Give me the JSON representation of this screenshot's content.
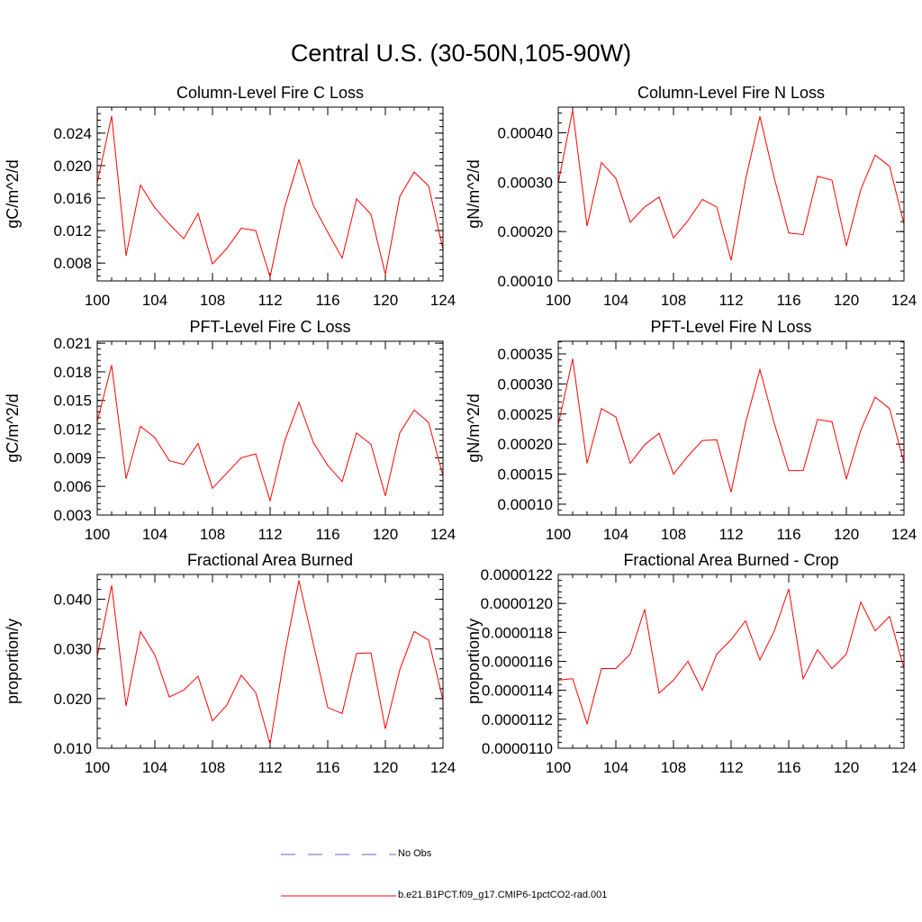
{
  "title": "Central U.S. (30-50N,105-90W)",
  "legend": {
    "items": [
      {
        "label": "No Obs",
        "color": "#5f5fd6",
        "style": "dashed"
      },
      {
        "label": "b.e21.B1PCT.f09_g17.CMIP6-1pctCO2-rad.001",
        "color": "#ff0000",
        "style": "solid"
      }
    ]
  },
  "chart_data": [
    {
      "type": "line",
      "title": "Column-Level Fire C Loss",
      "ylabel": "gC/m^2/d",
      "xlabel": "",
      "xlim": [
        100,
        124
      ],
      "ylim": [
        0.0058,
        0.0272
      ],
      "xticks": [
        "100",
        "104",
        "108",
        "112",
        "116",
        "120",
        "124"
      ],
      "yticks": [
        {
          "v": 0.008,
          "t": "0.008"
        },
        {
          "v": 0.012,
          "t": "0.012"
        },
        {
          "v": 0.016,
          "t": "0.016"
        },
        {
          "v": 0.02,
          "t": "0.020"
        },
        {
          "v": 0.024,
          "t": "0.024"
        }
      ],
      "series": [
        {
          "color": "#ff0000",
          "x": [
            100,
            101,
            102,
            103,
            104,
            105,
            106,
            107,
            108,
            109,
            110,
            111,
            112,
            113,
            114,
            115,
            116,
            117,
            118,
            119,
            120,
            121,
            122,
            123,
            124
          ],
          "values": [
            0.0179,
            0.0261,
            0.0089,
            0.0176,
            0.0148,
            0.0128,
            0.011,
            0.0141,
            0.0079,
            0.0098,
            0.0123,
            0.012,
            0.0063,
            0.0148,
            0.0207,
            0.0151,
            0.0118,
            0.0086,
            0.0159,
            0.014,
            0.0066,
            0.0162,
            0.0192,
            0.0175,
            0.0097
          ]
        }
      ]
    },
    {
      "type": "line",
      "title": "Column-Level Fire N Loss",
      "ylabel": "gN/m^2/d",
      "xlabel": "",
      "xlim": [
        100,
        124
      ],
      "ylim": [
        0.0001,
        0.000452
      ],
      "xticks": [
        "100",
        "104",
        "108",
        "112",
        "116",
        "120",
        "124"
      ],
      "yticks": [
        {
          "v": 0.0001,
          "t": "0.00010"
        },
        {
          "v": 0.0002,
          "t": "0.00020"
        },
        {
          "v": 0.0003,
          "t": "0.00030"
        },
        {
          "v": 0.0004,
          "t": "0.00040"
        }
      ],
      "series": [
        {
          "color": "#ff0000",
          "x": [
            100,
            101,
            102,
            103,
            104,
            105,
            106,
            107,
            108,
            109,
            110,
            111,
            112,
            113,
            114,
            115,
            116,
            117,
            118,
            119,
            120,
            121,
            122,
            123,
            124
          ],
          "values": [
            0.000298,
            0.000446,
            0.000211,
            0.00034,
            0.000308,
            0.000219,
            0.00025,
            0.00027,
            0.000187,
            0.000222,
            0.000265,
            0.00025,
            0.000142,
            0.000305,
            0.000433,
            0.000308,
            0.000197,
            0.000194,
            0.000312,
            0.000304,
            0.000171,
            0.000285,
            0.000355,
            0.000332,
            0.000215
          ]
        }
      ]
    },
    {
      "type": "line",
      "title": "PFT-Level Fire C Loss",
      "ylabel": "gC/m^2/d",
      "xlabel": "",
      "xlim": [
        100,
        124
      ],
      "ylim": [
        0.003,
        0.0212
      ],
      "xticks": [
        "100",
        "104",
        "108",
        "112",
        "116",
        "120",
        "124"
      ],
      "yticks": [
        {
          "v": 0.003,
          "t": "0.003"
        },
        {
          "v": 0.006,
          "t": "0.006"
        },
        {
          "v": 0.009,
          "t": "0.009"
        },
        {
          "v": 0.012,
          "t": "0.012"
        },
        {
          "v": 0.015,
          "t": "0.015"
        },
        {
          "v": 0.018,
          "t": "0.018"
        },
        {
          "v": 0.021,
          "t": "0.021"
        }
      ],
      "series": [
        {
          "color": "#ff0000",
          "x": [
            100,
            101,
            102,
            103,
            104,
            105,
            106,
            107,
            108,
            109,
            110,
            111,
            112,
            113,
            114,
            115,
            116,
            117,
            118,
            119,
            120,
            121,
            122,
            123,
            124
          ],
          "values": [
            0.0128,
            0.0187,
            0.0068,
            0.0123,
            0.0111,
            0.0087,
            0.0083,
            0.0105,
            0.0058,
            0.0074,
            0.009,
            0.0094,
            0.0045,
            0.0107,
            0.0148,
            0.0106,
            0.0082,
            0.0065,
            0.0116,
            0.0104,
            0.005,
            0.0116,
            0.014,
            0.0127,
            0.0071
          ]
        }
      ]
    },
    {
      "type": "line",
      "title": "PFT-Level Fire N Loss",
      "ylabel": "gN/m^2/d",
      "xlabel": "",
      "xlim": [
        100,
        124
      ],
      "ylim": [
        8.2e-05,
        0.000371
      ],
      "xticks": [
        "100",
        "104",
        "108",
        "112",
        "116",
        "120",
        "124"
      ],
      "yticks": [
        {
          "v": 0.0001,
          "t": "0.00010"
        },
        {
          "v": 0.00015,
          "t": "0.00015"
        },
        {
          "v": 0.0002,
          "t": "0.00020"
        },
        {
          "v": 0.00025,
          "t": "0.00025"
        },
        {
          "v": 0.0003,
          "t": "0.00030"
        },
        {
          "v": 0.00035,
          "t": "0.00035"
        }
      ],
      "series": [
        {
          "color": "#ff0000",
          "x": [
            100,
            101,
            102,
            103,
            104,
            105,
            106,
            107,
            108,
            109,
            110,
            111,
            112,
            113,
            114,
            115,
            116,
            117,
            118,
            119,
            120,
            121,
            122,
            123,
            124
          ],
          "values": [
            0.000232,
            0.000342,
            0.000168,
            0.000259,
            0.000245,
            0.000168,
            0.000199,
            0.000218,
            0.00015,
            0.00018,
            0.000206,
            0.000207,
            0.00012,
            0.000235,
            0.000324,
            0.000234,
            0.000156,
            0.000156,
            0.000241,
            0.000237,
            0.000142,
            0.000223,
            0.000278,
            0.000259,
            0.000169
          ]
        }
      ]
    },
    {
      "type": "line",
      "title": "Fractional Area Burned",
      "ylabel": "proportion/y",
      "xlabel": "",
      "xlim": [
        100,
        124
      ],
      "ylim": [
        0.01,
        0.045
      ],
      "xticks": [
        "100",
        "104",
        "108",
        "112",
        "116",
        "120",
        "124"
      ],
      "yticks": [
        {
          "v": 0.01,
          "t": "0.010"
        },
        {
          "v": 0.02,
          "t": "0.020"
        },
        {
          "v": 0.03,
          "t": "0.030"
        },
        {
          "v": 0.04,
          "t": "0.040"
        }
      ],
      "series": [
        {
          "color": "#ff0000",
          "x": [
            100,
            101,
            102,
            103,
            104,
            105,
            106,
            107,
            108,
            109,
            110,
            111,
            112,
            113,
            114,
            115,
            116,
            117,
            118,
            119,
            120,
            121,
            122,
            123,
            124
          ],
          "values": [
            0.0285,
            0.0428,
            0.0185,
            0.0335,
            0.0288,
            0.0203,
            0.0217,
            0.0245,
            0.0155,
            0.0187,
            0.0247,
            0.0212,
            0.0108,
            0.0288,
            0.0438,
            0.031,
            0.0182,
            0.017,
            0.0291,
            0.0292,
            0.0139,
            0.0258,
            0.0335,
            0.0318,
            0.0197
          ]
        }
      ]
    },
    {
      "type": "line",
      "title": "Fractional Area Burned - Crop",
      "ylabel": "proportion/y",
      "xlabel": "",
      "xlim": [
        100,
        124
      ],
      "ylim": [
        1.1e-05,
        1.22e-05
      ],
      "xticks": [
        "100",
        "104",
        "108",
        "112",
        "116",
        "120",
        "124"
      ],
      "yticks": [
        {
          "v": 1.1e-05,
          "t": "0.0000110"
        },
        {
          "v": 1.12e-05,
          "t": "0.0000112"
        },
        {
          "v": 1.14e-05,
          "t": "0.0000114"
        },
        {
          "v": 1.16e-05,
          "t": "0.0000116"
        },
        {
          "v": 1.18e-05,
          "t": "0.0000118"
        },
        {
          "v": 1.2e-05,
          "t": "0.0000120"
        },
        {
          "v": 1.22e-05,
          "t": "0.0000122"
        }
      ],
      "series": [
        {
          "color": "#ff0000",
          "x": [
            100,
            101,
            102,
            103,
            104,
            105,
            106,
            107,
            108,
            109,
            110,
            111,
            112,
            113,
            114,
            115,
            116,
            117,
            118,
            119,
            120,
            121,
            122,
            123,
            124
          ],
          "values": [
            1.147e-05,
            1.148e-05,
            1.117e-05,
            1.155e-05,
            1.155e-05,
            1.165e-05,
            1.196e-05,
            1.138e-05,
            1.147e-05,
            1.16e-05,
            1.14e-05,
            1.165e-05,
            1.175e-05,
            1.188e-05,
            1.161e-05,
            1.181e-05,
            1.21e-05,
            1.148e-05,
            1.168e-05,
            1.155e-05,
            1.165e-05,
            1.201e-05,
            1.181e-05,
            1.191e-05,
            1.155e-05
          ]
        }
      ]
    }
  ]
}
